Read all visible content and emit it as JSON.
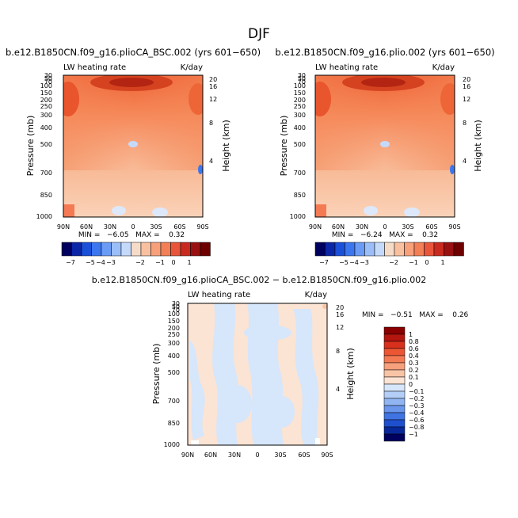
{
  "figure_title": "DJF",
  "chart_data": [
    {
      "type": "heatmap",
      "title": "b.e12.B1850CN.f09_g16.plioCA_BSC.002 (yrs 601−650)",
      "left_label": "LW heating rate",
      "units": "K/day",
      "ylabel": "Pressure (mb)",
      "ylabel_right": "Height (km)",
      "yticks": [
        "30",
        "50",
        "70",
        "100",
        "150",
        "200",
        "250",
        "300",
        "400",
        "500",
        "700",
        "850",
        "1000"
      ],
      "yticks_right": [
        "20",
        "16",
        "12",
        "8",
        "4"
      ],
      "xticks": [
        "90N",
        "60N",
        "30N",
        "0",
        "30S",
        "60S",
        "90S"
      ],
      "stats_text": "MIN =   −6.05   MAX =    0.32",
      "min": -6.05,
      "max": 0.32,
      "colorbar_labels": [
        "−7",
        "−5",
        "−4",
        "−3",
        "−2",
        "−1",
        "0",
        "1"
      ]
    },
    {
      "type": "heatmap",
      "title": "b.e12.B1850CN.f09_g16.plio.002 (yrs 601−650)",
      "left_label": "LW heating rate",
      "units": "K/day",
      "ylabel": "Pressure (mb)",
      "ylabel_right": "Height (km)",
      "yticks": [
        "30",
        "50",
        "70",
        "100",
        "150",
        "200",
        "250",
        "300",
        "400",
        "500",
        "700",
        "850",
        "1000"
      ],
      "yticks_right": [
        "20",
        "16",
        "12",
        "8",
        "4"
      ],
      "xticks": [
        "90N",
        "60N",
        "30N",
        "0",
        "30S",
        "60S",
        "90S"
      ],
      "stats_text": "MIN =   −6.24   MAX =    0.32",
      "min": -6.24,
      "max": 0.32,
      "colorbar_labels": [
        "−7",
        "−5",
        "−4",
        "−3",
        "−2",
        "−1",
        "0",
        "1"
      ]
    },
    {
      "type": "heatmap",
      "title": "b.e12.B1850CN.f09_g16.plioCA_BSC.002 − b.e12.B1850CN.f09_g16.plio.002",
      "left_label": "LW heating rate",
      "units": "K/day",
      "ylabel": "Pressure (mb)",
      "ylabel_right": "Height (km)",
      "yticks": [
        "30",
        "50",
        "70",
        "100",
        "150",
        "200",
        "250",
        "300",
        "400",
        "500",
        "700",
        "850",
        "1000"
      ],
      "yticks_right": [
        "20",
        "16",
        "12",
        "8",
        "4"
      ],
      "xticks": [
        "90N",
        "60N",
        "30N",
        "0",
        "30S",
        "60S",
        "90S"
      ],
      "stats_text": "MIN =   −0.51   MAX =    0.26",
      "min": -0.51,
      "max": 0.26,
      "colorbar_labels": [
        "1",
        "0.8",
        "0.6",
        "0.4",
        "0.3",
        "0.2",
        "0.1",
        "0",
        "−0.1",
        "−0.2",
        "−0.3",
        "−0.4",
        "−0.6",
        "−0.8",
        "−1"
      ]
    }
  ],
  "colors": {
    "abs_scale": [
      "#00005e",
      "#0b26a6",
      "#1a4fd8",
      "#3b76ee",
      "#6a9bf5",
      "#9bbef8",
      "#c5dafb",
      "#f6dcc8",
      "#f9c0a0",
      "#f7a07a",
      "#f27f56",
      "#e8553a",
      "#c92a1f",
      "#991010",
      "#6e0000"
    ],
    "diff_scale": [
      "#8a0000",
      "#b4150f",
      "#d8301d",
      "#ed5634",
      "#f47a53",
      "#f6a07c",
      "#f8c4a6",
      "#fbe4d4",
      "#d6e6fb",
      "#b4cff7",
      "#91b5f2",
      "#6a96ec",
      "#4074e3",
      "#1e4fcf",
      "#08279a",
      "#00005e"
    ]
  }
}
